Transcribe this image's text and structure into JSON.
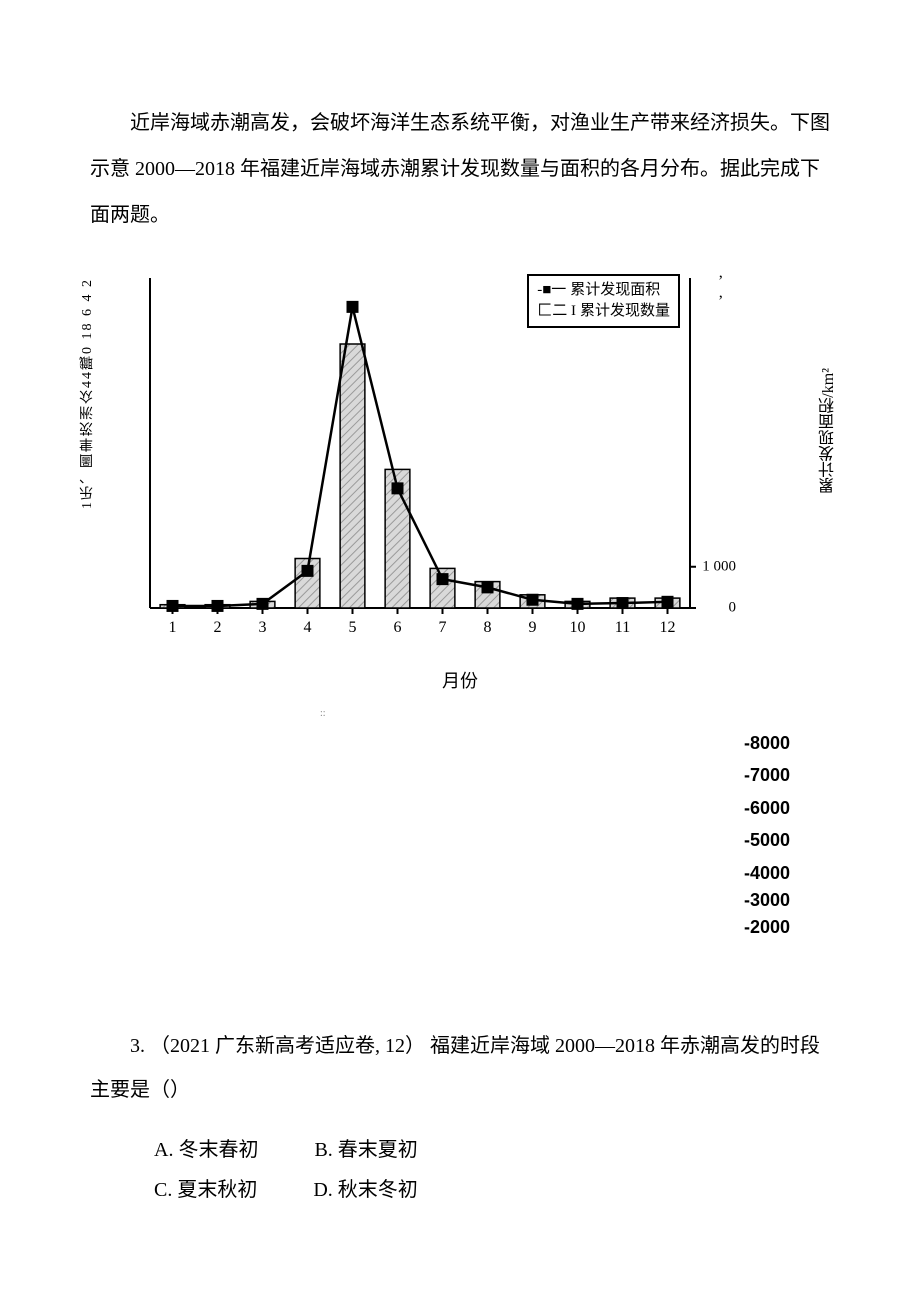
{
  "intro": "近岸海域赤潮高发，会破坏海洋生态系统平衡，对渔业生产带来经济损失。下图示意 2000—2018 年福建近岸海域赤潮累计发现数量与面积的各月分布。据此完成下面两题。",
  "chart": {
    "type": "bar+line",
    "categories": [
      "1",
      "2",
      "3",
      "4",
      "5",
      "6",
      "7",
      "8",
      "9",
      "10",
      "11",
      "12"
    ],
    "bar_values": [
      1,
      1,
      2,
      15,
      80,
      42,
      12,
      8,
      4,
      2,
      3,
      3
    ],
    "line_values": [
      50,
      50,
      100,
      900,
      7300,
      2900,
      700,
      500,
      200,
      100,
      120,
      150
    ],
    "bar_fill": "#d9d9d9",
    "bar_hatch": "#9a9a9a",
    "line_color": "#000000",
    "marker": "square",
    "marker_fill": "#000000",
    "left_ymax": 100,
    "left_ticks_text": "1乐、圖聿茨洲众44職0 18 6 4 2",
    "right_ymax": 8000,
    "right_visible_ticks": [
      {
        "v": 1000,
        "label": "1 000"
      },
      {
        "v": 0,
        "label": "0"
      }
    ],
    "right_apostrophes": 2,
    "x_axis_label": "月份",
    "left_y_label": "累计发现数量/次",
    "right_y_label": "累计发现面积/km²",
    "legend": {
      "area_prefix": "-■一",
      "area_label": "累计发现面积",
      "count_prefix": "匚二 I ",
      "count_label": "累计发现数量"
    },
    "background_color": "#ffffff",
    "axis_color": "#000000",
    "font_size_axis": 14
  },
  "stray_numbers": [
    "-8000",
    "-7000",
    "-6000",
    "-5000",
    "-4000",
    "-3000",
    "-2000"
  ],
  "dot_marker": "::",
  "question": {
    "num": "3.",
    "src": "（2021 广东新高考适应卷, 12）",
    "stem": "福建近岸海域 2000—2018 年赤潮高发的时段主要是（）",
    "options": {
      "A": "A. 冬末春初",
      "B": "B. 春末夏初",
      "C": "C. 夏末秋初",
      "D": "D. 秋末冬初"
    }
  }
}
